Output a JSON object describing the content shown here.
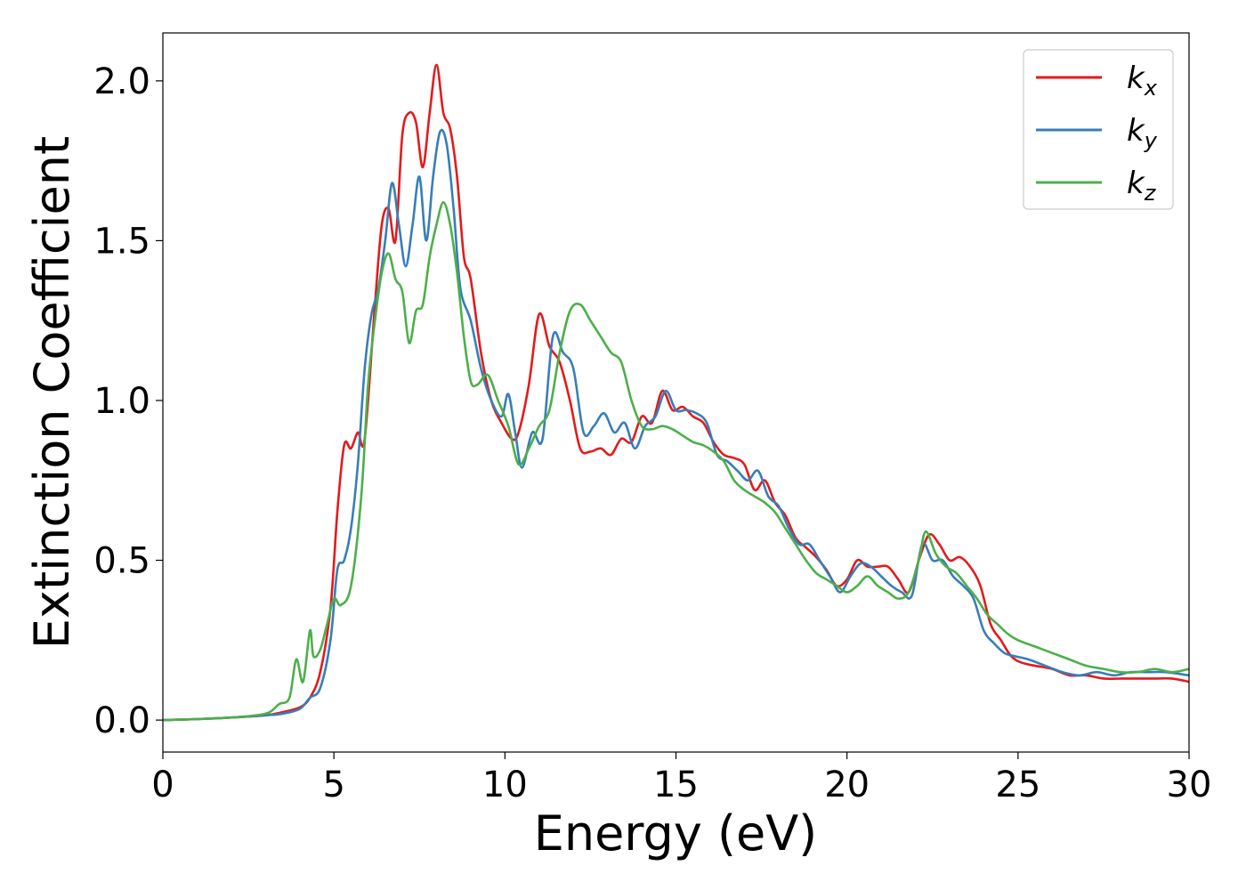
{
  "chart_data": {
    "type": "line",
    "xlabel": "Energy (eV)",
    "ylabel": "Extinction Coefficient",
    "xlim": [
      0,
      30
    ],
    "ylim": [
      -0.1,
      2.15
    ],
    "xticks": [
      0,
      5,
      10,
      15,
      20,
      25,
      30
    ],
    "xtick_labels": [
      "0",
      "5",
      "10",
      "15",
      "20",
      "25",
      "30"
    ],
    "yticks": [
      0.0,
      0.5,
      1.0,
      1.5,
      2.0
    ],
    "ytick_labels": [
      "0.0",
      "0.5",
      "1.0",
      "1.5",
      "2.0"
    ],
    "grid": false,
    "legend_position": "top-right",
    "series": [
      {
        "name": "kx",
        "legend_base": "k",
        "legend_sub": "x",
        "color": "#e41a1c",
        "x": [
          0,
          1,
          2,
          3,
          3.5,
          4,
          4.3,
          4.6,
          4.9,
          5.1,
          5.3,
          5.5,
          5.7,
          5.9,
          6.2,
          6.4,
          6.6,
          6.8,
          7,
          7.2,
          7.4,
          7.6,
          7.8,
          8,
          8.2,
          8.4,
          8.6,
          8.8,
          9,
          9.3,
          9.6,
          9.9,
          10.2,
          10.4,
          10.7,
          11,
          11.3,
          11.6,
          11.9,
          12.2,
          12.5,
          12.8,
          13.1,
          13.4,
          13.7,
          14,
          14.3,
          14.6,
          14.9,
          15.2,
          15.5,
          15.8,
          16.1,
          16.4,
          16.7,
          17,
          17.3,
          17.6,
          17.9,
          18.2,
          18.5,
          18.8,
          19.1,
          19.4,
          19.7,
          20,
          20.3,
          20.6,
          20.9,
          21.2,
          21.5,
          21.8,
          22.1,
          22.4,
          22.7,
          23,
          23.3,
          23.6,
          23.9,
          24.2,
          24.5,
          24.8,
          25.1,
          25.5,
          26,
          26.5,
          27,
          27.5,
          28,
          28.5,
          29,
          29.5,
          30
        ],
        "values": [
          0,
          0.003,
          0.008,
          0.015,
          0.025,
          0.04,
          0.07,
          0.15,
          0.35,
          0.65,
          0.86,
          0.85,
          0.9,
          0.88,
          1.3,
          1.55,
          1.6,
          1.5,
          1.83,
          1.9,
          1.87,
          1.73,
          1.9,
          2.05,
          1.9,
          1.85,
          1.7,
          1.45,
          1.38,
          1.15,
          1.0,
          0.93,
          0.88,
          0.9,
          1.05,
          1.27,
          1.17,
          1.12,
          1.0,
          0.85,
          0.84,
          0.85,
          0.83,
          0.88,
          0.87,
          0.95,
          0.93,
          1.03,
          0.97,
          0.98,
          0.95,
          0.93,
          0.87,
          0.83,
          0.82,
          0.8,
          0.72,
          0.75,
          0.68,
          0.64,
          0.57,
          0.54,
          0.51,
          0.47,
          0.42,
          0.44,
          0.5,
          0.48,
          0.48,
          0.48,
          0.44,
          0.4,
          0.5,
          0.58,
          0.55,
          0.5,
          0.51,
          0.48,
          0.42,
          0.3,
          0.25,
          0.2,
          0.18,
          0.17,
          0.16,
          0.14,
          0.14,
          0.13,
          0.13,
          0.13,
          0.13,
          0.13,
          0.12
        ]
      },
      {
        "name": "ky",
        "legend_base": "k",
        "legend_sub": "y",
        "color": "#377eb8",
        "x": [
          0,
          1,
          2,
          3,
          3.5,
          4,
          4.3,
          4.6,
          4.9,
          5.1,
          5.3,
          5.5,
          5.7,
          5.9,
          6.1,
          6.3,
          6.5,
          6.7,
          6.9,
          7.1,
          7.3,
          7.5,
          7.7,
          7.9,
          8.1,
          8.3,
          8.5,
          8.7,
          9,
          9.3,
          9.6,
          9.9,
          10.1,
          10.3,
          10.5,
          10.8,
          11.1,
          11.4,
          11.7,
          12,
          12.3,
          12.6,
          12.9,
          13.2,
          13.5,
          13.8,
          14.1,
          14.4,
          14.7,
          15,
          15.3,
          15.6,
          15.9,
          16.2,
          16.5,
          16.8,
          17.1,
          17.4,
          17.7,
          18,
          18.3,
          18.6,
          18.9,
          19.2,
          19.5,
          19.8,
          20.1,
          20.4,
          20.7,
          21,
          21.3,
          21.6,
          21.9,
          22.2,
          22.5,
          22.8,
          23.1,
          23.4,
          23.7,
          24,
          24.3,
          24.6,
          24.9,
          25.3,
          25.8,
          26.3,
          26.8,
          27.3,
          27.8,
          28.3,
          28.8,
          29.3,
          30
        ],
        "values": [
          0,
          0.003,
          0.008,
          0.015,
          0.02,
          0.035,
          0.07,
          0.1,
          0.25,
          0.47,
          0.5,
          0.6,
          0.8,
          1.1,
          1.27,
          1.35,
          1.5,
          1.68,
          1.55,
          1.42,
          1.55,
          1.7,
          1.5,
          1.7,
          1.84,
          1.8,
          1.6,
          1.35,
          1.25,
          1.1,
          1.0,
          0.95,
          1.02,
          0.9,
          0.79,
          0.9,
          0.88,
          1.2,
          1.15,
          1.1,
          0.9,
          0.92,
          0.96,
          0.9,
          0.93,
          0.85,
          0.92,
          0.95,
          1.03,
          0.97,
          0.97,
          0.96,
          0.93,
          0.83,
          0.81,
          0.78,
          0.75,
          0.78,
          0.7,
          0.67,
          0.6,
          0.55,
          0.55,
          0.5,
          0.45,
          0.4,
          0.45,
          0.49,
          0.48,
          0.45,
          0.42,
          0.4,
          0.39,
          0.55,
          0.5,
          0.5,
          0.45,
          0.42,
          0.38,
          0.28,
          0.24,
          0.21,
          0.2,
          0.19,
          0.17,
          0.15,
          0.14,
          0.15,
          0.14,
          0.15,
          0.15,
          0.15,
          0.14
        ]
      },
      {
        "name": "kz",
        "legend_base": "k",
        "legend_sub": "z",
        "color": "#4daf4a",
        "x": [
          0,
          1,
          2,
          3,
          3.4,
          3.7,
          3.9,
          4.1,
          4.3,
          4.4,
          4.6,
          4.8,
          5,
          5.2,
          5.5,
          5.8,
          6,
          6.2,
          6.4,
          6.6,
          6.8,
          7,
          7.2,
          7.4,
          7.6,
          7.8,
          8,
          8.2,
          8.4,
          8.6,
          8.8,
          9,
          9.2,
          9.5,
          9.8,
          10.1,
          10.4,
          10.7,
          11,
          11.3,
          11.6,
          11.9,
          12.2,
          12.5,
          12.8,
          13.1,
          13.4,
          13.7,
          14,
          14.3,
          14.6,
          14.9,
          15.2,
          15.5,
          15.8,
          16.1,
          16.4,
          16.7,
          17,
          17.3,
          17.6,
          17.9,
          18.2,
          18.5,
          18.8,
          19.1,
          19.4,
          19.7,
          20,
          20.3,
          20.6,
          20.9,
          21.2,
          21.5,
          21.8,
          22.1,
          22.3,
          22.6,
          22.9,
          23.2,
          23.5,
          23.8,
          24.1,
          24.4,
          24.7,
          25,
          25.5,
          26,
          26.5,
          27,
          27.5,
          28,
          28.5,
          29,
          29.5,
          30
        ],
        "values": [
          0,
          0.003,
          0.008,
          0.02,
          0.05,
          0.07,
          0.19,
          0.12,
          0.28,
          0.2,
          0.22,
          0.3,
          0.38,
          0.36,
          0.42,
          0.7,
          1.05,
          1.25,
          1.4,
          1.46,
          1.38,
          1.34,
          1.18,
          1.28,
          1.3,
          1.45,
          1.55,
          1.62,
          1.55,
          1.4,
          1.2,
          1.06,
          1.05,
          1.08,
          1.0,
          0.92,
          0.8,
          0.85,
          0.92,
          0.97,
          1.15,
          1.28,
          1.3,
          1.25,
          1.2,
          1.15,
          1.12,
          1.0,
          0.92,
          0.91,
          0.92,
          0.91,
          0.89,
          0.87,
          0.86,
          0.84,
          0.81,
          0.75,
          0.72,
          0.7,
          0.68,
          0.65,
          0.6,
          0.55,
          0.5,
          0.46,
          0.44,
          0.42,
          0.4,
          0.42,
          0.45,
          0.42,
          0.4,
          0.38,
          0.4,
          0.5,
          0.59,
          0.52,
          0.48,
          0.46,
          0.42,
          0.38,
          0.33,
          0.3,
          0.27,
          0.25,
          0.23,
          0.21,
          0.19,
          0.17,
          0.16,
          0.15,
          0.15,
          0.16,
          0.15,
          0.16
        ]
      }
    ]
  }
}
